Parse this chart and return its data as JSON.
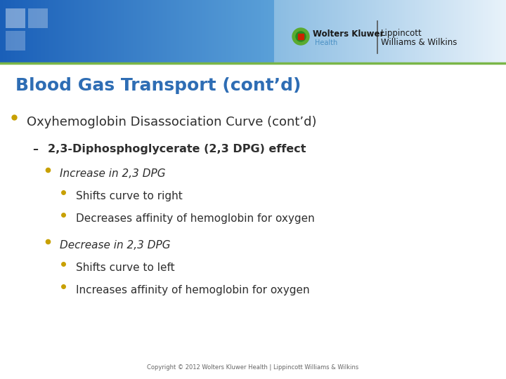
{
  "title": "Blood Gas Transport (cont’d)",
  "title_color": "#2E6DB4",
  "title_fontsize": 18,
  "background_color": "#FFFFFF",
  "green_line_color": "#7AB648",
  "bullet_color": "#C8A000",
  "text_color": "#2E2E2E",
  "copyright": "Copyright © 2012 Wolters Kluwer Health | Lippincott Williams & Wilkins",
  "lines": [
    {
      "level": 0,
      "text": "Oxyhemoglobin Disassociation Curve (cont’d)",
      "style": "normal",
      "italic": false,
      "bold": false
    },
    {
      "level": 1,
      "text": "2,3-Diphosphoglycerate (2,3 DPG) effect",
      "style": "dash",
      "italic": false,
      "bold": true
    },
    {
      "level": 2,
      "text": "Increase in 2,3 DPG",
      "style": "bullet",
      "italic": true,
      "bold": false
    },
    {
      "level": 3,
      "text": "Shifts curve to right",
      "style": "bullet",
      "italic": false,
      "bold": false
    },
    {
      "level": 3,
      "text": "Decreases affinity of hemoglobin for oxygen",
      "style": "bullet",
      "italic": false,
      "bold": false
    },
    {
      "level": 2,
      "text": "Decrease in 2,3 DPG",
      "style": "bullet",
      "italic": true,
      "bold": false
    },
    {
      "level": 3,
      "text": "Shifts curve to left",
      "style": "bullet",
      "italic": false,
      "bold": false
    },
    {
      "level": 3,
      "text": "Increases affinity of hemoglobin for oxygen",
      "style": "bullet",
      "italic": false,
      "bold": false
    }
  ]
}
